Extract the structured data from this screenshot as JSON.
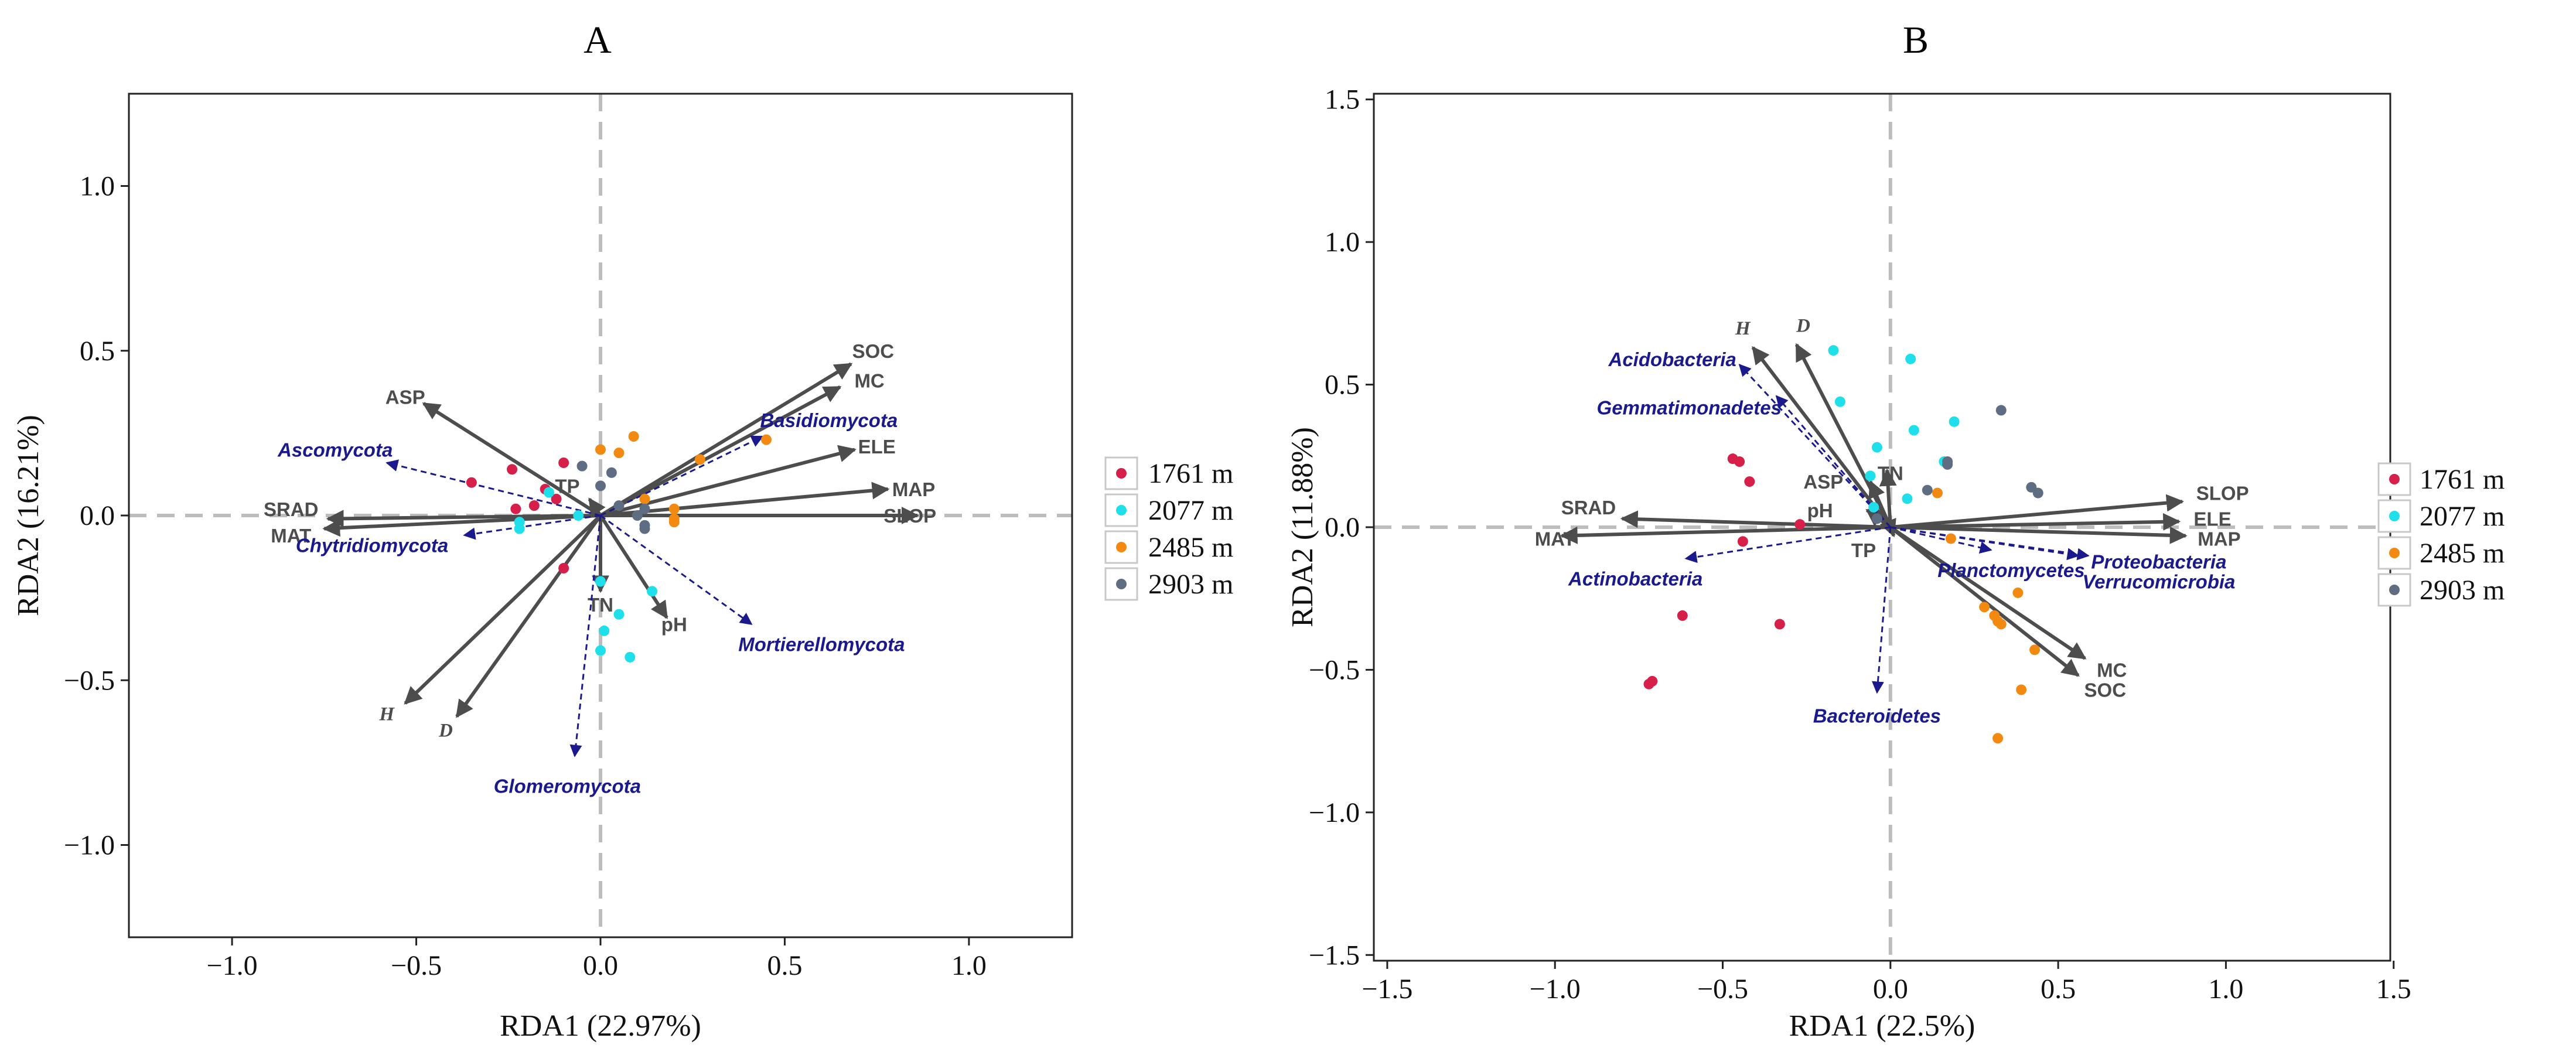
{
  "colors": {
    "1761 m": "#d6204a",
    "2077 m": "#1fe0ea",
    "2485 m": "#f28a12",
    "2903 m": "#5f6d83",
    "env_arrow": "#4d4d4d",
    "taxa_arrow": "#1a1a8c",
    "zero_line": "#bdbdbd"
  },
  "chart_data": [
    {
      "panel": "A",
      "type": "scatter",
      "title": "A",
      "xlabel": "RDA1 (22.97%)",
      "ylabel": "RDA2 (16.21%)",
      "xlim": [
        -1.28,
        1.28
      ],
      "ylim": [
        -1.28,
        1.28
      ],
      "xticks": [
        -1.0,
        -0.5,
        0.0,
        0.5,
        1.0
      ],
      "xtick_labels": [
        "−1.0",
        "−0.5",
        "0.0",
        "0.5",
        "1.0"
      ],
      "yticks": [
        -1.0,
        -0.5,
        0.0,
        0.5,
        1.0
      ],
      "ytick_labels": [
        "−1.0",
        "−0.5",
        "0.0",
        "0.5",
        "1.0"
      ],
      "legend": [
        "1761 m",
        "2077 m",
        "2485 m",
        "2903 m"
      ],
      "groups": [
        {
          "name": "1761 m",
          "points": [
            [
              -0.35,
              0.1
            ],
            [
              -0.24,
              0.14
            ],
            [
              -0.23,
              0.02
            ],
            [
              -0.18,
              0.03
            ],
            [
              -0.1,
              0.16
            ],
            [
              -0.12,
              0.05
            ],
            [
              -0.15,
              0.08
            ],
            [
              -0.1,
              -0.16
            ]
          ]
        },
        {
          "name": "2077 m",
          "points": [
            [
              -0.22,
              -0.02
            ],
            [
              -0.14,
              0.07
            ],
            [
              -0.06,
              0.0
            ],
            [
              -0.22,
              -0.04
            ],
            [
              0.0,
              -0.2
            ],
            [
              0.01,
              -0.35
            ],
            [
              0.05,
              -0.3
            ],
            [
              0.08,
              -0.43
            ],
            [
              0.0,
              -0.41
            ],
            [
              0.14,
              -0.23
            ]
          ]
        },
        {
          "name": "2485 m",
          "points": [
            [
              0.0,
              0.2
            ],
            [
              0.05,
              0.19
            ],
            [
              0.09,
              0.24
            ],
            [
              0.27,
              0.17
            ],
            [
              0.45,
              0.23
            ],
            [
              0.12,
              0.05
            ],
            [
              0.2,
              0.02
            ],
            [
              0.2,
              -0.01
            ],
            [
              0.2,
              -0.02
            ]
          ]
        },
        {
          "name": "2903 m",
          "points": [
            [
              -0.05,
              0.15
            ],
            [
              0.03,
              0.13
            ],
            [
              0.0,
              0.09
            ],
            [
              0.05,
              0.03
            ],
            [
              0.12,
              0.02
            ],
            [
              0.12,
              -0.03
            ],
            [
              0.12,
              -0.04
            ],
            [
              0.1,
              0.0
            ]
          ]
        }
      ],
      "env_arrows": [
        {
          "label": "SOC",
          "x": 0.68,
          "y": 0.46,
          "label_at": [
            0.74,
            0.5
          ]
        },
        {
          "label": "MC",
          "x": 0.65,
          "y": 0.39,
          "label_at": [
            0.73,
            0.41
          ]
        },
        {
          "label": "ELE",
          "x": 0.69,
          "y": 0.2,
          "label_at": [
            0.75,
            0.21
          ]
        },
        {
          "label": "MAP",
          "x": 0.78,
          "y": 0.08,
          "label_at": [
            0.85,
            0.08
          ]
        },
        {
          "label": "SLOP",
          "x": 0.86,
          "y": 0.0,
          "label_at": [
            0.84,
            0.0
          ]
        },
        {
          "label": "SRAD",
          "x": -0.74,
          "y": -0.01,
          "label_at": [
            -0.84,
            0.02
          ]
        },
        {
          "label": "MAT",
          "x": -0.75,
          "y": -0.04,
          "label_at": [
            -0.84,
            -0.06
          ]
        },
        {
          "label": "ASP",
          "x": -0.48,
          "y": 0.34,
          "label_at": [
            -0.53,
            0.36
          ]
        },
        {
          "label": "TP",
          "x": -0.03,
          "y": 0.05,
          "label_at": [
            -0.09,
            0.09
          ]
        },
        {
          "label": "TN",
          "x": 0.0,
          "y": -0.23,
          "label_at": [
            0.0,
            -0.27
          ]
        },
        {
          "label": "pH",
          "x": 0.18,
          "y": -0.31,
          "label_at": [
            0.2,
            -0.33
          ]
        },
        {
          "label": "H",
          "x": -0.53,
          "y": -0.57,
          "label_at": [
            -0.58,
            -0.6
          ],
          "italic": true
        },
        {
          "label": "D",
          "x": -0.39,
          "y": -0.61,
          "label_at": [
            -0.42,
            -0.65
          ],
          "italic": true
        }
      ],
      "taxa_arrows": [
        {
          "label": "Ascomycota",
          "x": -0.58,
          "y": 0.16,
          "label_at": [
            -0.72,
            0.2
          ]
        },
        {
          "label": "Basidiomycota",
          "x": 0.44,
          "y": 0.24,
          "label_at": [
            0.62,
            0.29
          ]
        },
        {
          "label": "Chytridiomycota",
          "x": -0.37,
          "y": -0.06,
          "label_at": [
            -0.62,
            -0.09
          ]
        },
        {
          "label": "Mortierellomycota",
          "x": 0.41,
          "y": -0.33,
          "label_at": [
            0.6,
            -0.39
          ]
        },
        {
          "label": "Glomeromycota",
          "x": -0.07,
          "y": -0.73,
          "label_at": [
            -0.09,
            -0.82
          ]
        }
      ]
    },
    {
      "panel": "B",
      "type": "scatter",
      "title": "B",
      "xlabel": "RDA1 (22.5%)",
      "ylabel": "RDA2 (11.88%)",
      "xlim": [
        -1.54,
        1.49
      ],
      "ylim": [
        -1.52,
        1.52
      ],
      "xticks": [
        -1.5,
        -1.0,
        -0.5,
        0.0,
        0.5,
        1.0,
        1.5
      ],
      "xtick_labels": [
        "−1.5",
        "−1.0",
        "−0.5",
        "0.0",
        "0.5",
        "1.0",
        "1.5"
      ],
      "yticks": [
        -1.5,
        -1.0,
        -0.5,
        0.0,
        0.5,
        1.0,
        1.5
      ],
      "ytick_labels": [
        "−1.5",
        "−1.0",
        "−0.5",
        "0.0",
        "0.5",
        "1.0",
        "1.5"
      ],
      "legend": [
        "1761 m",
        "2077 m",
        "2485 m",
        "2903 m"
      ],
      "groups": [
        {
          "name": "1761 m",
          "points": [
            [
              -0.47,
              0.24
            ],
            [
              -0.45,
              0.23
            ],
            [
              -0.42,
              0.16
            ],
            [
              -0.27,
              0.01
            ],
            [
              -0.44,
              -0.05
            ],
            [
              -0.62,
              -0.31
            ],
            [
              -0.33,
              -0.34
            ],
            [
              -0.71,
              -0.54
            ],
            [
              -0.72,
              -0.55
            ]
          ]
        },
        {
          "name": "2077 m",
          "points": [
            [
              -0.17,
              0.62
            ],
            [
              -0.15,
              0.44
            ],
            [
              0.06,
              0.59
            ],
            [
              0.19,
              0.37
            ],
            [
              0.07,
              0.34
            ],
            [
              -0.04,
              0.28
            ],
            [
              0.05,
              0.1
            ],
            [
              -0.06,
              0.18
            ],
            [
              0.16,
              0.23
            ],
            [
              -0.05,
              0.07
            ]
          ]
        },
        {
          "name": "2485 m",
          "points": [
            [
              0.18,
              -0.04
            ],
            [
              0.28,
              -0.28
            ],
            [
              0.31,
              -0.31
            ],
            [
              0.32,
              -0.33
            ],
            [
              0.33,
              -0.34
            ],
            [
              0.38,
              -0.23
            ],
            [
              0.43,
              -0.43
            ],
            [
              0.39,
              -0.57
            ],
            [
              0.32,
              -0.74
            ],
            [
              0.14,
              0.12
            ]
          ]
        },
        {
          "name": "2903 m",
          "points": [
            [
              0.33,
              0.41
            ],
            [
              0.17,
              0.23
            ],
            [
              0.17,
              0.22
            ],
            [
              0.11,
              0.13
            ],
            [
              0.42,
              0.14
            ],
            [
              0.44,
              0.12
            ],
            [
              -0.04,
              0.03
            ]
          ]
        }
      ],
      "env_arrows": [
        {
          "label": "SLOP",
          "x": 0.87,
          "y": 0.09,
          "label_at": [
            0.99,
            0.12
          ]
        },
        {
          "label": "ELE",
          "x": 0.86,
          "y": 0.02,
          "label_at": [
            0.96,
            0.03
          ]
        },
        {
          "label": "MAP",
          "x": 0.88,
          "y": -0.03,
          "label_at": [
            0.98,
            -0.04
          ]
        },
        {
          "label": "MC",
          "x": 0.58,
          "y": -0.46,
          "label_at": [
            0.66,
            -0.5
          ]
        },
        {
          "label": "SOC",
          "x": 0.56,
          "y": -0.52,
          "label_at": [
            0.64,
            -0.57
          ]
        },
        {
          "label": "SRAD",
          "x": -0.8,
          "y": 0.03,
          "label_at": [
            -0.9,
            0.07
          ]
        },
        {
          "label": "MAT",
          "x": -0.98,
          "y": -0.03,
          "label_at": [
            -1.0,
            -0.04
          ]
        },
        {
          "label": "H",
          "x": -0.41,
          "y": 0.63,
          "label_at": [
            -0.44,
            0.7
          ],
          "italic": true
        },
        {
          "label": "D",
          "x": -0.28,
          "y": 0.64,
          "label_at": [
            -0.26,
            0.71
          ],
          "italic": true
        },
        {
          "label": "ASP",
          "x": -0.06,
          "y": 0.16,
          "label_at": [
            -0.2,
            0.16
          ]
        },
        {
          "label": "TN",
          "x": -0.01,
          "y": 0.2,
          "label_at": [
            0.0,
            0.19
          ]
        },
        {
          "label": "pH",
          "x": -0.07,
          "y": 0.06,
          "label_at": [
            -0.21,
            0.06
          ]
        },
        {
          "label": "TP",
          "x": 0.01,
          "y": -0.03,
          "label_at": [
            -0.08,
            -0.08
          ]
        }
      ],
      "taxa_arrows": [
        {
          "label": "Acidobacteria",
          "x": -0.45,
          "y": 0.57,
          "label_at": [
            -0.65,
            0.59
          ]
        },
        {
          "label": "Gemmatimonadetes",
          "x": -0.34,
          "y": 0.46,
          "label_at": [
            -0.6,
            0.42
          ]
        },
        {
          "label": "Actinobacteria",
          "x": -0.61,
          "y": -0.11,
          "label_at": [
            -0.76,
            -0.18
          ]
        },
        {
          "label": "Planctomycetes",
          "x": 0.3,
          "y": -0.08,
          "label_at": [
            0.36,
            -0.15
          ]
        },
        {
          "label": "Proteobacteria",
          "x": 0.59,
          "y": -0.1,
          "label_at": [
            0.8,
            -0.12
          ]
        },
        {
          "label": "Verrucomicrobia",
          "x": 0.56,
          "y": -0.1,
          "label_at": [
            0.8,
            -0.19
          ]
        },
        {
          "label": "Bacteroidetes",
          "x": -0.04,
          "y": -0.58,
          "label_at": [
            -0.04,
            -0.66
          ]
        }
      ]
    }
  ]
}
